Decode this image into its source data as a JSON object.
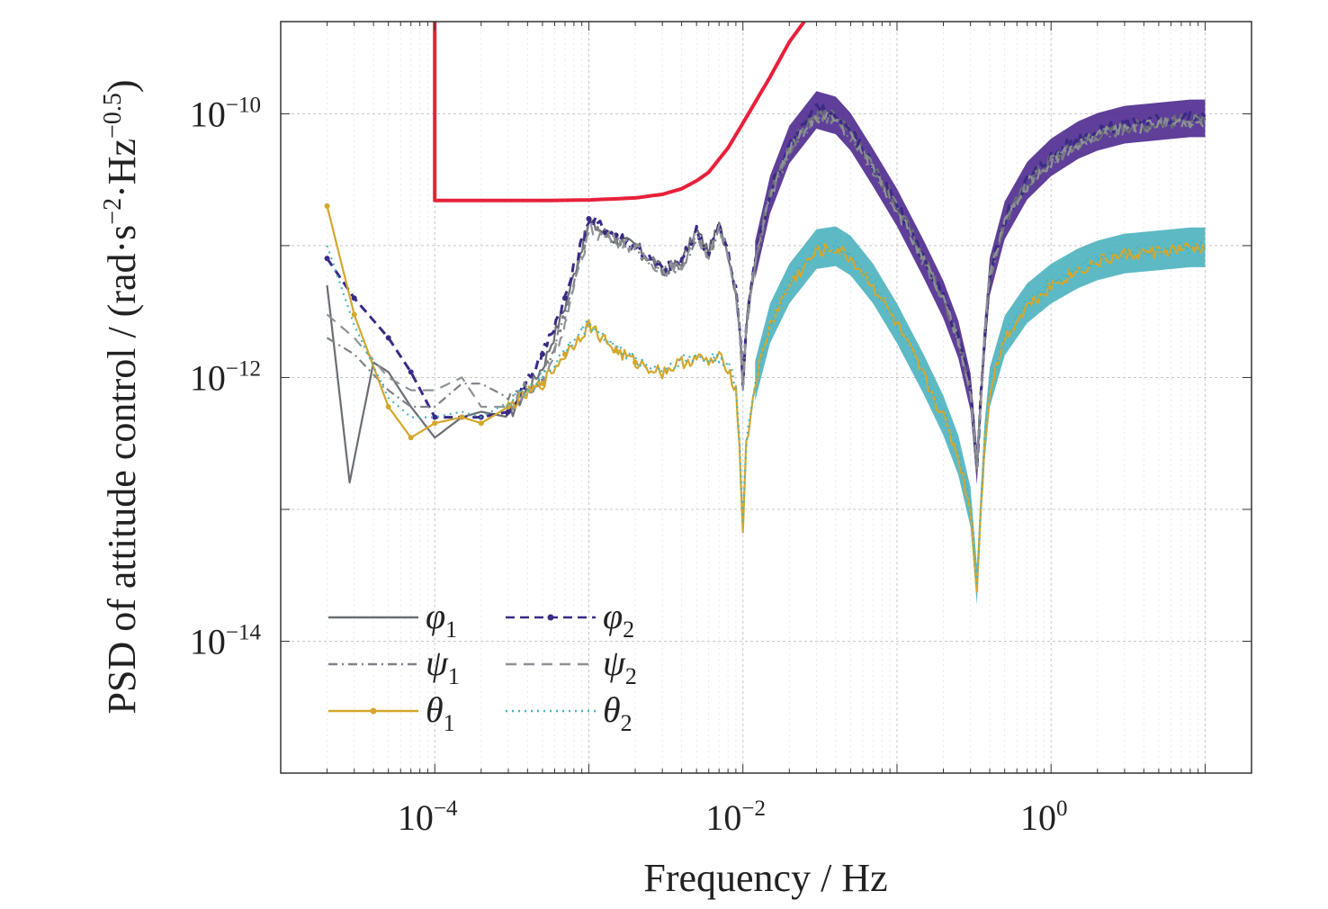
{
  "chart_data": {
    "type": "line",
    "xscale": "log",
    "yscale": "log",
    "xlim": [
      1e-05,
      20
    ],
    "ylim": [
      1e-15,
      5e-10
    ],
    "grid": true,
    "legend_position": "bottom-left",
    "xlabel": "Frequency / Hz",
    "ylabel": {
      "main": "PSD of attitude control / (rad·s",
      "exp1": "−2",
      "mid": "·Hz",
      "exp2": "−0.5",
      "tail": ")"
    },
    "x_ticks": [
      {
        "value": 0.0001,
        "base": "10",
        "exp": "−4"
      },
      {
        "value": 0.01,
        "base": "10",
        "exp": "−2"
      },
      {
        "value": 1,
        "base": "10",
        "exp": "0"
      }
    ],
    "y_ticks": [
      {
        "value": 1e-10,
        "base": "10",
        "exp": "−10"
      },
      {
        "value": 1e-12,
        "base": "10",
        "exp": "−12"
      },
      {
        "value": 1e-14,
        "base": "10",
        "exp": "−14"
      }
    ],
    "requirement": {
      "color": "#e8203a",
      "x": [
        0.0001,
        0.0001,
        0.0005,
        0.001,
        0.002,
        0.003,
        0.004,
        0.005,
        0.006,
        0.008,
        0.01,
        0.015,
        0.02,
        0.025
      ],
      "y": [
        5e-10,
        2.2e-11,
        2.2e-11,
        2.22e-11,
        2.3e-11,
        2.45e-11,
        2.7e-11,
        3.1e-11,
        3.6e-11,
        5.5e-11,
        8.5e-11,
        1.9e-10,
        3.5e-10,
        5e-10
      ]
    },
    "series": [
      {
        "name": "φ",
        "sub": "1",
        "color": "#6a6e74",
        "style": "solid",
        "group": "attitude",
        "x": [
          2e-05,
          2.8e-05,
          4e-05,
          5e-05,
          7e-05,
          0.0001,
          0.00015,
          0.0002,
          0.0003,
          0.0005,
          0.0007,
          0.001,
          0.0015,
          0.002,
          0.003,
          0.004,
          0.005,
          0.006,
          0.007,
          0.008,
          0.009,
          0.0095,
          0.01,
          0.0105,
          0.012,
          0.015,
          0.02,
          0.03,
          0.04,
          0.05,
          0.07,
          0.1,
          0.15,
          0.2,
          0.25,
          0.3,
          0.33,
          0.35,
          0.37,
          0.4,
          0.5,
          0.7,
          1,
          1.5,
          2,
          3,
          5,
          8,
          10
        ],
        "y": [
          5e-12,
          1.6e-13,
          1.3e-12,
          1.1e-12,
          6e-13,
          3.5e-13,
          5e-13,
          5.5e-13,
          5e-13,
          1.2e-12,
          3.5e-12,
          1.5e-11,
          1.1e-11,
          1e-11,
          6.5e-12,
          7.5e-12,
          1.3e-11,
          9e-12,
          1.4e-11,
          9e-12,
          4.5e-12,
          2.5e-12,
          9e-13,
          2.5e-12,
          8e-12,
          2.5e-11,
          5.5e-11,
          1e-10,
          9.5e-11,
          7e-11,
          4e-11,
          2e-11,
          8e-12,
          4e-12,
          2e-12,
          8e-13,
          2.2e-13,
          7e-13,
          2e-12,
          6e-12,
          1.5e-11,
          3e-11,
          4.5e-11,
          6e-11,
          7e-11,
          8e-11,
          8.5e-11,
          9e-11,
          9e-11
        ]
      },
      {
        "name": "φ",
        "sub": "2",
        "color": "#3a2a86",
        "style": "dashdot-dot",
        "group": "attitude",
        "x": [
          2e-05,
          3e-05,
          5e-05,
          7e-05,
          0.0001,
          0.00015,
          0.0002,
          0.0003,
          0.0005,
          0.0007,
          0.001,
          0.0015,
          0.002,
          0.003,
          0.004,
          0.005,
          0.006,
          0.007,
          0.008,
          0.009,
          0.0095,
          0.01,
          0.0105,
          0.012,
          0.015,
          0.02,
          0.03,
          0.04,
          0.05,
          0.07,
          0.1,
          0.15,
          0.2,
          0.25,
          0.3,
          0.33,
          0.35,
          0.37,
          0.4,
          0.5,
          0.7,
          1,
          1.5,
          2,
          3,
          5,
          8,
          10
        ],
        "y": [
          8e-12,
          4e-12,
          2e-12,
          1.1e-12,
          5e-13,
          5e-13,
          5e-13,
          5.5e-13,
          1.5e-12,
          4e-12,
          1.6e-11,
          1.2e-11,
          1e-11,
          6.5e-12,
          7.5e-12,
          1.3e-11,
          9e-12,
          1.4e-11,
          9e-12,
          4.5e-12,
          2.5e-12,
          9e-13,
          2.5e-12,
          8e-12,
          2.5e-11,
          6e-11,
          1.1e-10,
          1e-10,
          7.5e-11,
          4e-11,
          2e-11,
          8e-12,
          4e-12,
          2e-12,
          8e-13,
          2.2e-13,
          7e-13,
          2e-12,
          6e-12,
          1.6e-11,
          3.2e-11,
          4.8e-11,
          6.5e-11,
          7.5e-11,
          8.5e-11,
          9e-11,
          9.5e-11,
          9.5e-11
        ]
      },
      {
        "name": "ψ",
        "sub": "1",
        "color": "#7e8287",
        "style": "dashdot",
        "group": "attitude",
        "x": [
          2e-05,
          3e-05,
          5e-05,
          7e-05,
          0.0001,
          0.00015,
          0.0002,
          0.0003,
          0.0005,
          0.0007,
          0.001,
          0.0015,
          0.002,
          0.003,
          0.004,
          0.005,
          0.006,
          0.007,
          0.008,
          0.009,
          0.0095,
          0.01,
          0.0105,
          0.012,
          0.015,
          0.02,
          0.03,
          0.04,
          0.05,
          0.07,
          0.1,
          0.15,
          0.2,
          0.25,
          0.3,
          0.33,
          0.35,
          0.37,
          0.4,
          0.5,
          0.7,
          1,
          1.5,
          2,
          3,
          5,
          8,
          10
        ],
        "y": [
          2e-12,
          1.5e-12,
          8e-13,
          6e-13,
          6e-13,
          9e-13,
          9e-13,
          7e-13,
          1e-12,
          3e-12,
          1.4e-11,
          1.1e-11,
          9.5e-12,
          6.5e-12,
          7e-12,
          1.2e-11,
          8.5e-12,
          1.3e-11,
          8.5e-12,
          4.5e-12,
          2.4e-12,
          9e-13,
          2.4e-12,
          7.5e-12,
          2.4e-11,
          5.2e-11,
          9.5e-11,
          9e-11,
          6.8e-11,
          3.8e-11,
          1.9e-11,
          7.5e-12,
          3.8e-12,
          1.9e-12,
          8e-13,
          2.2e-13,
          7e-13,
          2e-12,
          6e-12,
          1.5e-11,
          2.9e-11,
          4.4e-11,
          5.8e-11,
          6.8e-11,
          7.8e-11,
          8.3e-11,
          8.8e-11,
          8.8e-11
        ]
      },
      {
        "name": "ψ",
        "sub": "2",
        "color": "#8e9297",
        "style": "dash",
        "group": "attitude",
        "x": [
          2e-05,
          3e-05,
          5e-05,
          7e-05,
          0.0001,
          0.00015,
          0.0002,
          0.0003,
          0.0005,
          0.0007,
          0.001,
          0.0015,
          0.002,
          0.003,
          0.004,
          0.005,
          0.006,
          0.007,
          0.008,
          0.009,
          0.0095,
          0.01,
          0.0105,
          0.012,
          0.015,
          0.02,
          0.03,
          0.04,
          0.05,
          0.07,
          0.1,
          0.15,
          0.2,
          0.25,
          0.3,
          0.33,
          0.35,
          0.37,
          0.4,
          0.5,
          0.7,
          1,
          1.5,
          2,
          3,
          5,
          8,
          10
        ],
        "y": [
          3e-12,
          2e-12,
          1e-12,
          8e-13,
          8e-13,
          1e-12,
          6e-13,
          6e-13,
          9e-13,
          2.5e-12,
          1.3e-11,
          1.1e-11,
          9.5e-12,
          6.5e-12,
          7e-12,
          1.2e-11,
          8.5e-12,
          1.3e-11,
          8.5e-12,
          4.5e-12,
          2.4e-12,
          9e-13,
          2.4e-12,
          7.5e-12,
          2.4e-11,
          5.2e-11,
          9.5e-11,
          9e-11,
          6.8e-11,
          3.8e-11,
          1.9e-11,
          7.5e-12,
          3.8e-12,
          1.9e-12,
          8e-13,
          2.2e-13,
          7e-13,
          2e-12,
          6e-12,
          1.5e-11,
          2.9e-11,
          4.4e-11,
          5.8e-11,
          6.8e-11,
          7.8e-11,
          8.3e-11,
          8.8e-11,
          8.8e-11
        ]
      },
      {
        "name": "θ",
        "sub": "1",
        "color": "#d4a72c",
        "style": "solid-dot",
        "group": "pitch",
        "x": [
          2e-05,
          3e-05,
          5e-05,
          7e-05,
          0.0001,
          0.00015,
          0.0002,
          0.0003,
          0.0005,
          0.0007,
          0.001,
          0.0015,
          0.002,
          0.003,
          0.004,
          0.005,
          0.006,
          0.007,
          0.008,
          0.009,
          0.0095,
          0.01,
          0.0105,
          0.012,
          0.015,
          0.02,
          0.03,
          0.04,
          0.05,
          0.07,
          0.1,
          0.15,
          0.2,
          0.25,
          0.3,
          0.33,
          0.35,
          0.37,
          0.4,
          0.5,
          0.7,
          1,
          1.5,
          2,
          3,
          5,
          8,
          10
        ],
        "y": [
          2e-11,
          3e-12,
          6e-13,
          3.5e-13,
          4.5e-13,
          5e-13,
          4.5e-13,
          6e-13,
          9e-13,
          1.5e-12,
          2.5e-12,
          1.6e-12,
          1.3e-12,
          1.1e-12,
          1.3e-12,
          1.4e-12,
          1.3e-12,
          1.4e-12,
          1.2e-12,
          8e-13,
          3e-13,
          7e-14,
          3e-13,
          9e-13,
          2.5e-12,
          5e-12,
          9e-12,
          9.5e-12,
          8e-12,
          5e-12,
          2.5e-12,
          1e-12,
          5e-13,
          2.5e-13,
          1e-13,
          2.5e-14,
          1e-13,
          3e-13,
          8e-13,
          2e-12,
          3.5e-12,
          5e-12,
          6.5e-12,
          7.5e-12,
          8.5e-12,
          9e-12,
          9.5e-12,
          9.5e-12
        ]
      },
      {
        "name": "θ",
        "sub": "2",
        "color": "#4bb3bf",
        "style": "dot",
        "group": "pitch",
        "x": [
          2e-05,
          3e-05,
          5e-05,
          7e-05,
          0.0001,
          0.00015,
          0.0002,
          0.0003,
          0.0005,
          0.0007,
          0.001,
          0.0015,
          0.002,
          0.003,
          0.004,
          0.005,
          0.006,
          0.007,
          0.008,
          0.009,
          0.0095,
          0.01,
          0.0105,
          0.012,
          0.015,
          0.02,
          0.03,
          0.04,
          0.05,
          0.07,
          0.1,
          0.15,
          0.2,
          0.25,
          0.3,
          0.33,
          0.35,
          0.37,
          0.4,
          0.5,
          0.7,
          1,
          1.5,
          2,
          3,
          5,
          8,
          10
        ],
        "y": [
          1e-11,
          2.5e-12,
          7e-13,
          5e-13,
          5e-13,
          5.5e-13,
          5e-13,
          6.5e-13,
          1e-12,
          1.6e-12,
          2.6e-12,
          1.7e-12,
          1.35e-12,
          1.15e-12,
          1.35e-12,
          1.45e-12,
          1.35e-12,
          1.45e-12,
          1.25e-12,
          8.5e-13,
          3.2e-13,
          8e-14,
          3.2e-13,
          9.5e-13,
          2.6e-12,
          5.2e-12,
          9.5e-12,
          1e-11,
          8.5e-12,
          5.2e-12,
          2.6e-12,
          1.05e-12,
          5.2e-13,
          2.6e-13,
          1.05e-13,
          2.7e-14,
          1.05e-13,
          3.2e-13,
          8.5e-13,
          2.1e-12,
          3.7e-12,
          5.2e-12,
          6.8e-12,
          7.8e-12,
          8.8e-12,
          9.3e-12,
          9.8e-12,
          9.8e-12
        ]
      }
    ]
  }
}
